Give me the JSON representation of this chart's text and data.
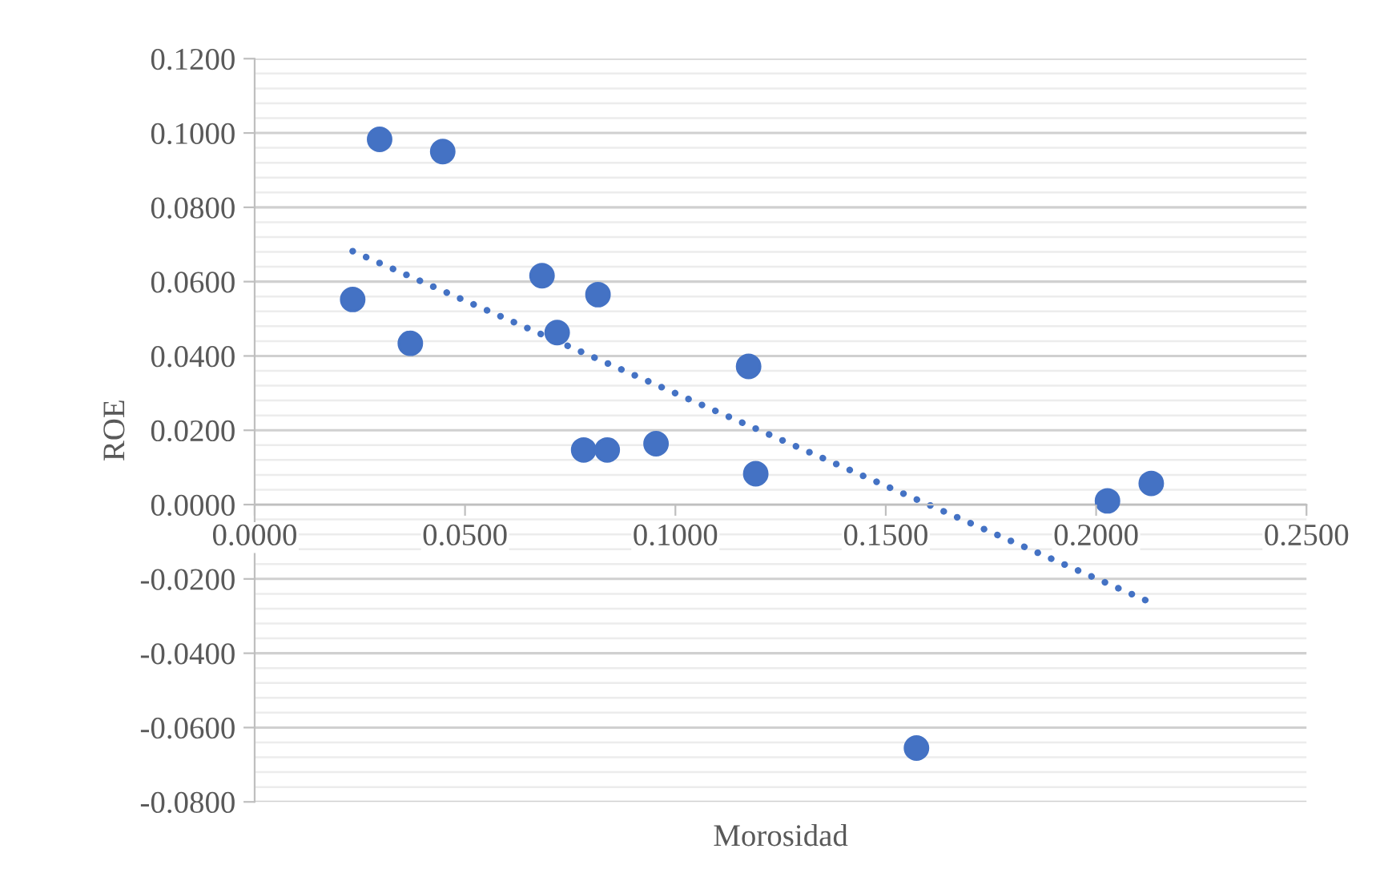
{
  "chart_data": {
    "type": "scatter",
    "xlabel": "Morosidad",
    "ylabel": "ROE",
    "xlim": [
      0,
      0.25
    ],
    "xticks": [
      {
        "value": 0,
        "label": "0.0000"
      },
      {
        "value": 0.05,
        "label": "0.0500"
      },
      {
        "value": 0.1,
        "label": "0.1000"
      },
      {
        "value": 0.15,
        "label": "0.1500"
      },
      {
        "value": 0.2,
        "label": "0.2000"
      },
      {
        "value": 0.25,
        "label": "0.2500"
      }
    ],
    "ylim": [
      -0.08,
      0.12
    ],
    "yticks": [
      {
        "value": -0.08,
        "label": "-0.0800"
      },
      {
        "value": -0.06,
        "label": "-0.0600"
      },
      {
        "value": -0.04,
        "label": "-0.0400"
      },
      {
        "value": -0.02,
        "label": "-0.0200"
      },
      {
        "value": 0,
        "label": "0.0000"
      },
      {
        "value": 0.02,
        "label": "0.0200"
      },
      {
        "value": 0.04,
        "label": "0.0400"
      },
      {
        "value": 0.06,
        "label": "0.0600"
      },
      {
        "value": 0.08,
        "label": "0.0800"
      },
      {
        "value": 0.1,
        "label": "0.1000"
      },
      {
        "value": 0.12,
        "label": "0.1200"
      }
    ],
    "grid": "y",
    "legend": false,
    "series": [
      {
        "color": "#4472c4",
        "marker": "circle",
        "x": [
          0.0297,
          0.0447,
          0.0233,
          0.037,
          0.0683,
          0.0816,
          0.0719,
          0.0782,
          0.0838,
          0.0954,
          0.1174,
          0.1191,
          0.2027,
          0.2131,
          0.1573
        ],
        "values": [
          0.0983,
          0.095,
          0.0552,
          0.0434,
          0.0616,
          0.0565,
          0.0463,
          0.0147,
          0.0147,
          0.0164,
          0.0372,
          0.0083,
          0.001,
          0.0057,
          -0.0655
        ]
      },
      {
        "type": "line",
        "color": "#4472c4",
        "line_style": "dotted",
        "marker": "none",
        "x": [
          0.0233,
          0.2121
        ],
        "values": [
          0.0682,
          -0.0259
        ]
      }
    ]
  }
}
